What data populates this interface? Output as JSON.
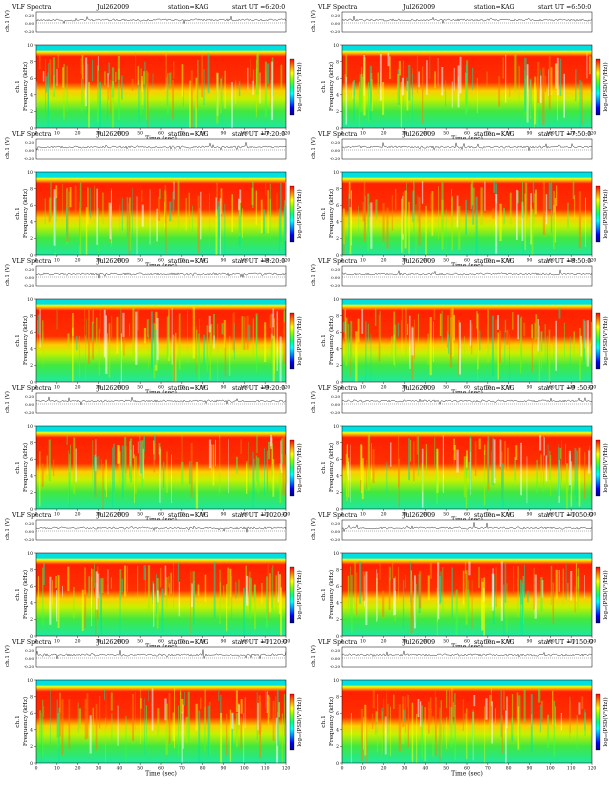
{
  "page_title": "VLF Spectra grid, station KAG, Jul 26 2009",
  "colors": {
    "spectrogram_scale": [
      "#ff0000",
      "#ff7f00",
      "#ffff00",
      "#7fff00",
      "#00ff7f",
      "#00ffff",
      "#0080ff",
      "#0000ff",
      "#000080"
    ],
    "background": "#ffffff",
    "axis": "#000000"
  },
  "panel_labels": {
    "title_prefix": "VLF Spectra",
    "ch_axis_label": "ch.1 (V)",
    "freq_axis_label_1": "ch.1",
    "freq_axis_label_2": "Frequency (kHz)",
    "time_axis_label": "Time (sec)",
    "colorbar_label": "log₁₀(PSD(V²/Hz))"
  },
  "chart_data": [
    {
      "type": "heatmap",
      "date": "Jul262009",
      "station": "station=KAG",
      "start_ut": "start UT =6:20:0",
      "xlim": [
        0,
        120
      ],
      "ylim": [
        0,
        10
      ],
      "x_ticks": [
        "0",
        "10",
        "20",
        "30",
        "40",
        "50",
        "60",
        "70",
        "80",
        "90",
        "100",
        "110",
        "120"
      ],
      "y_ticks": [
        "0",
        "2",
        "4",
        "6",
        "8",
        "10"
      ],
      "ch_ticks": [
        "0.20",
        "0.00",
        "-0.20"
      ]
    },
    {
      "type": "heatmap",
      "date": "Jul262009",
      "station": "station=KAG",
      "start_ut": "start UT =6:50:0",
      "xlim": [
        0,
        120
      ],
      "ylim": [
        0,
        10
      ],
      "x_ticks": [
        "0",
        "10",
        "20",
        "30",
        "40",
        "50",
        "60",
        "70",
        "80",
        "90",
        "100",
        "110",
        "120"
      ],
      "y_ticks": [
        "0",
        "2",
        "4",
        "6",
        "8",
        "10"
      ],
      "ch_ticks": [
        "0.20",
        "0.00",
        "-0.20"
      ]
    },
    {
      "type": "heatmap",
      "date": "Jul262009",
      "station": "station=KAG",
      "start_ut": "start UT =7:20:0",
      "xlim": [
        0,
        120
      ],
      "ylim": [
        0,
        10
      ],
      "x_ticks": [
        "0",
        "10",
        "20",
        "30",
        "40",
        "50",
        "60",
        "70",
        "80",
        "90",
        "100",
        "110",
        "120"
      ],
      "y_ticks": [
        "0",
        "2",
        "4",
        "6",
        "8",
        "10"
      ],
      "ch_ticks": [
        "0.20",
        "0.00",
        "-0.20"
      ]
    },
    {
      "type": "heatmap",
      "date": "Jul262009",
      "station": "station=KAG",
      "start_ut": "start UT =7:50:0",
      "xlim": [
        0,
        120
      ],
      "ylim": [
        0,
        10
      ],
      "x_ticks": [
        "0",
        "10",
        "20",
        "30",
        "40",
        "50",
        "60",
        "70",
        "80",
        "90",
        "100",
        "110",
        "120"
      ],
      "y_ticks": [
        "0",
        "2",
        "4",
        "6",
        "8",
        "10"
      ],
      "ch_ticks": [
        "0.20",
        "0.00",
        "-0.20"
      ]
    },
    {
      "type": "heatmap",
      "date": "Jul262009",
      "station": "station=KAG",
      "start_ut": "start UT =8:20:0",
      "xlim": [
        0,
        120
      ],
      "ylim": [
        0,
        10
      ],
      "x_ticks": [
        "0",
        "10",
        "20",
        "30",
        "40",
        "50",
        "60",
        "70",
        "80",
        "90",
        "100",
        "110",
        "120"
      ],
      "y_ticks": [
        "0",
        "2",
        "4",
        "6",
        "8",
        "10"
      ],
      "ch_ticks": [
        "0.20",
        "0.00",
        "-0.20"
      ]
    },
    {
      "type": "heatmap",
      "date": "Jul262009",
      "station": "station=KAG",
      "start_ut": "start UT =8:50:0",
      "xlim": [
        0,
        120
      ],
      "ylim": [
        0,
        10
      ],
      "x_ticks": [
        "0",
        "10",
        "20",
        "30",
        "40",
        "50",
        "60",
        "70",
        "80",
        "90",
        "100",
        "110",
        "120"
      ],
      "y_ticks": [
        "0",
        "2",
        "4",
        "6",
        "8",
        "10"
      ],
      "ch_ticks": [
        "0.20",
        "0.00",
        "-0.20"
      ]
    },
    {
      "type": "heatmap",
      "date": "Jul262009",
      "station": "station=KAG",
      "start_ut": "start UT =9:20:0",
      "xlim": [
        0,
        120
      ],
      "ylim": [
        0,
        10
      ],
      "x_ticks": [
        "0",
        "10",
        "20",
        "30",
        "40",
        "50",
        "60",
        "70",
        "80",
        "90",
        "100",
        "110",
        "120"
      ],
      "y_ticks": [
        "0",
        "2",
        "4",
        "6",
        "8",
        "10"
      ],
      "ch_ticks": [
        "0.20",
        "0.00",
        "-0.20"
      ]
    },
    {
      "type": "heatmap",
      "date": "Jul262009",
      "station": "station=KAG",
      "start_ut": "start UT =9 :50:0",
      "xlim": [
        0,
        120
      ],
      "ylim": [
        0,
        10
      ],
      "x_ticks": [
        "0",
        "10",
        "20",
        "30",
        "40",
        "50",
        "60",
        "70",
        "80",
        "90",
        "100",
        "110",
        "120"
      ],
      "y_ticks": [
        "0",
        "2",
        "4",
        "6",
        "8",
        "10"
      ],
      "ch_ticks": [
        "0.20",
        "0.00",
        "-0.20"
      ]
    },
    {
      "type": "heatmap",
      "date": "Jul262009",
      "station": "station=KAG",
      "start_ut": "start UT =1020:0",
      "xlim": [
        0,
        120
      ],
      "ylim": [
        0,
        10
      ],
      "x_ticks": [
        "0",
        "10",
        "20",
        "30",
        "40",
        "50",
        "60",
        "70",
        "80",
        "90",
        "100",
        "110",
        "120"
      ],
      "y_ticks": [
        "0",
        "2",
        "4",
        "6",
        "8",
        "10"
      ],
      "ch_ticks": [
        "0.20",
        "0.00",
        "-0.20"
      ]
    },
    {
      "type": "heatmap",
      "date": "Jul262009",
      "station": "station=KAG",
      "start_ut": "start UT =1050:0",
      "xlim": [
        0,
        120
      ],
      "ylim": [
        0,
        10
      ],
      "x_ticks": [
        "0",
        "10",
        "20",
        "30",
        "40",
        "50",
        "60",
        "70",
        "80",
        "90",
        "100",
        "110",
        "120"
      ],
      "y_ticks": [
        "0",
        "2",
        "4",
        "6",
        "8",
        "10"
      ],
      "ch_ticks": [
        "0.20",
        "0.00",
        "-0.20"
      ]
    },
    {
      "type": "heatmap",
      "date": "Jul262009",
      "station": "station=KAG",
      "start_ut": "start UT =1120:0",
      "xlim": [
        0,
        120
      ],
      "ylim": [
        0,
        10
      ],
      "x_ticks": [
        "0",
        "10",
        "20",
        "30",
        "40",
        "50",
        "60",
        "70",
        "80",
        "90",
        "100",
        "110",
        "120"
      ],
      "y_ticks": [
        "0",
        "2",
        "4",
        "6",
        "8",
        "10"
      ],
      "ch_ticks": [
        "0.20",
        "0.00",
        "-0.20"
      ]
    },
    {
      "type": "heatmap",
      "date": "Jul262009",
      "station": "station=KAG",
      "start_ut": "start UT =1150:0",
      "xlim": [
        0,
        120
      ],
      "ylim": [
        0,
        10
      ],
      "x_ticks": [
        "0",
        "10",
        "20",
        "30",
        "40",
        "50",
        "60",
        "70",
        "80",
        "90",
        "100",
        "110",
        "120"
      ],
      "y_ticks": [
        "0",
        "2",
        "4",
        "6",
        "8",
        "10"
      ],
      "ch_ticks": [
        "0.20",
        "0.00",
        "-0.20"
      ]
    }
  ]
}
